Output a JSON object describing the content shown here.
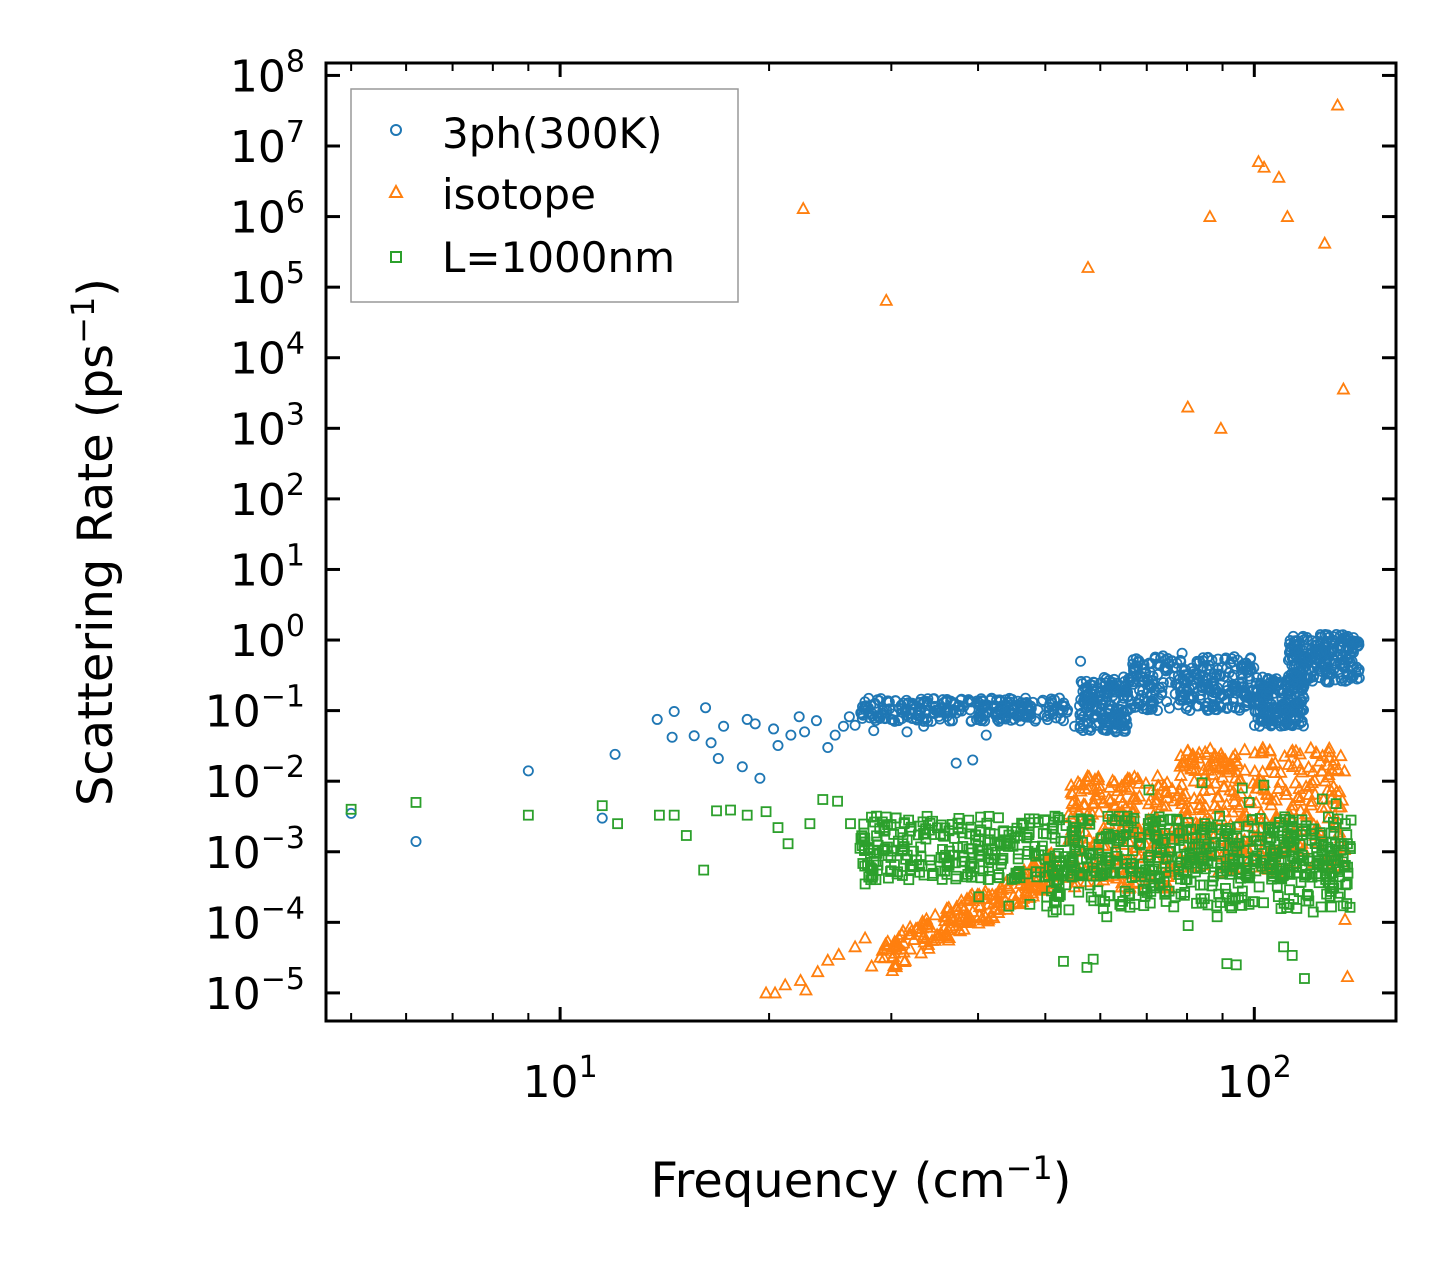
{
  "chart_data": {
    "type": "scatter",
    "title": "",
    "xlabel": "Frequency (cm",
    "xlabel_sup": "−1",
    "xlabel_end": ")",
    "ylabel": "Scattering Rate (ps",
    "ylabel_sup": "−1",
    "ylabel_end": ")",
    "xscale": "log",
    "yscale": "log",
    "xlim": [
      4.6,
      160
    ],
    "ylim": [
      4e-06,
      150000000.0
    ],
    "x_ticks": [
      {
        "value": 10,
        "base": "10",
        "exp": "1"
      },
      {
        "value": 100,
        "base": "10",
        "exp": "2"
      }
    ],
    "y_ticks": [
      {
        "value": 1e-05,
        "base": "10",
        "exp": "−5"
      },
      {
        "value": 0.0001,
        "base": "10",
        "exp": "−4"
      },
      {
        "value": 0.001,
        "base": "10",
        "exp": "−3"
      },
      {
        "value": 0.01,
        "base": "10",
        "exp": "−2"
      },
      {
        "value": 0.1,
        "base": "10",
        "exp": "−1"
      },
      {
        "value": 1,
        "base": "10",
        "exp": "0"
      },
      {
        "value": 10,
        "base": "10",
        "exp": "1"
      },
      {
        "value": 100,
        "base": "10",
        "exp": "2"
      },
      {
        "value": 1000,
        "base": "10",
        "exp": "3"
      },
      {
        "value": 10000,
        "base": "10",
        "exp": "4"
      },
      {
        "value": 100000,
        "base": "10",
        "exp": "5"
      },
      {
        "value": 1000000,
        "base": "10",
        "exp": "6"
      },
      {
        "value": 10000000,
        "base": "10",
        "exp": "7"
      },
      {
        "value": 100000000,
        "base": "10",
        "exp": "8"
      }
    ],
    "legend_position": "top-left",
    "series": [
      {
        "name": "3ph(300K)",
        "marker": "circle",
        "color": "#1f77b4",
        "points": [
          [
            5,
            0.0035
          ],
          [
            6.2,
            0.0014
          ],
          [
            9,
            0.014
          ],
          [
            11.5,
            0.003
          ],
          [
            12,
            0.024
          ],
          [
            13.8,
            0.075
          ],
          [
            14.5,
            0.042
          ],
          [
            14.6,
            0.097
          ],
          [
            15.6,
            0.044
          ],
          [
            16.2,
            0.11
          ],
          [
            16.5,
            0.035
          ],
          [
            16.9,
            0.021
          ],
          [
            17.2,
            0.06
          ],
          [
            18.3,
            0.016
          ],
          [
            18.6,
            0.075
          ],
          [
            19.1,
            0.065
          ],
          [
            19.4,
            0.011
          ],
          [
            20.3,
            0.055
          ],
          [
            20.6,
            0.032
          ],
          [
            21.5,
            0.045
          ],
          [
            22.1,
            0.082
          ],
          [
            22.5,
            0.05
          ],
          [
            23.4,
            0.072
          ],
          [
            24.3,
            0.03
          ],
          [
            24.9,
            0.045
          ],
          [
            25.6,
            0.06
          ],
          [
            26.1,
            0.082
          ],
          [
            26.6,
            0.062
          ],
          [
            27.2,
            0.091
          ],
          [
            27.8,
            0.11
          ],
          [
            28.3,
            0.052
          ],
          [
            29.1,
            0.092
          ],
          [
            30.2,
            0.074
          ],
          [
            31.6,
            0.05
          ],
          [
            33.4,
            0.06
          ],
          [
            35.3,
            0.11
          ],
          [
            37.2,
            0.018
          ],
          [
            39.3,
            0.02
          ],
          [
            41.1,
            0.045
          ],
          [
            43.4,
            0.11
          ],
          [
            46.2,
            0.13
          ],
          [
            49.6,
            0.14
          ],
          [
            52.4,
            0.15
          ],
          [
            55.1,
            0.06
          ],
          [
            56.2,
            0.5
          ],
          [
            57.3,
            0.26
          ],
          [
            58.1,
            0.12
          ],
          [
            61.2,
            0.16
          ],
          [
            63.7,
            0.075
          ],
          [
            67.2,
            0.36
          ],
          [
            70.8,
            0.35
          ],
          [
            73.6,
            0.18
          ],
          [
            76.2,
            0.5
          ],
          [
            78.7,
            0.65
          ],
          [
            81.3,
            0.4
          ],
          [
            85.6,
            0.28
          ],
          [
            89.4,
            0.31
          ],
          [
            94.2,
            0.22
          ],
          [
            98.3,
            0.16
          ],
          [
            102.5,
            0.11
          ],
          [
            106.3,
            0.075
          ],
          [
            110.6,
            0.1
          ],
          [
            114.8,
            0.32
          ],
          [
            119.5,
            0.28
          ],
          [
            124.6,
            0.42
          ],
          [
            129.8,
            0.7
          ],
          [
            135.2,
            1.1
          ],
          [
            141,
            0.95
          ]
        ],
        "clusters": [
          {
            "x0": 27,
            "x1": 54,
            "y0": 0.07,
            "y1": 0.15,
            "n": 260
          },
          {
            "x0": 56,
            "x1": 66,
            "y0": 0.05,
            "y1": 0.3,
            "n": 160
          },
          {
            "x0": 66,
            "x1": 100,
            "y0": 0.1,
            "y1": 0.6,
            "n": 280
          },
          {
            "x0": 100,
            "x1": 118,
            "y0": 0.06,
            "y1": 0.3,
            "n": 200
          },
          {
            "x0": 112,
            "x1": 142,
            "y0": 0.25,
            "y1": 1.2,
            "n": 220
          }
        ]
      },
      {
        "name": "isotope",
        "marker": "triangle",
        "color": "#ff7f0e",
        "points": [
          [
            19.8,
            1e-05
          ],
          [
            20.4,
            1e-05
          ],
          [
            21.1,
            1.3e-05
          ],
          [
            22.2,
            1.5e-05
          ],
          [
            22.6,
            1.1e-05
          ],
          [
            23.5,
            2e-05
          ],
          [
            24.3,
            2.9e-05
          ],
          [
            25.2,
            3.5e-05
          ],
          [
            26.6,
            4.5e-05
          ],
          [
            27.5,
            6e-05
          ],
          [
            28.1,
            2.4e-05
          ],
          [
            28.9,
            3.2e-05
          ],
          [
            30.2,
            4.5e-05
          ],
          [
            32.1,
            7.6e-05
          ],
          [
            22.4,
            1300000.0
          ],
          [
            29.5,
            65000.0
          ],
          [
            57.6,
            190000.0
          ],
          [
            80.2,
            2000.0
          ],
          [
            86.3,
            1000000.0
          ],
          [
            89.5,
            1000.0
          ],
          [
            101.4,
            6000000.0
          ],
          [
            103.3,
            5000000.0
          ],
          [
            108.5,
            3600000.0
          ],
          [
            111.6,
            1000000.0
          ],
          [
            126.3,
            420000.0
          ],
          [
            131.8,
            38000000.0
          ],
          [
            134.4,
            3600.0
          ],
          [
            135.1,
            0.00011
          ],
          [
            136.2,
            1.7e-05
          ]
        ],
        "clusters": [
          {
            "x0": 29,
            "x1": 52,
            "y0": 3e-05,
            "y1": 0.0006,
            "n": 220,
            "trend": true
          },
          {
            "x0": 54,
            "x1": 76,
            "y0": 0.0003,
            "y1": 0.012,
            "n": 220
          },
          {
            "x0": 76,
            "x1": 135,
            "y0": 0.0005,
            "y1": 0.03,
            "n": 360
          }
        ]
      },
      {
        "name": "L=1000nm",
        "marker": "square",
        "color": "#2ca02c",
        "points": [
          [
            5,
            0.004
          ],
          [
            6.2,
            0.005
          ],
          [
            9,
            0.0033
          ],
          [
            11.5,
            0.0045
          ],
          [
            12.1,
            0.0025
          ],
          [
            13.9,
            0.0033
          ],
          [
            14.6,
            0.0033
          ],
          [
            15.2,
            0.0017
          ],
          [
            16.1,
            0.00055
          ],
          [
            16.8,
            0.0038
          ],
          [
            17.6,
            0.0039
          ],
          [
            18.6,
            0.0033
          ],
          [
            19.8,
            0.0037
          ],
          [
            20.6,
            0.0022
          ],
          [
            21.3,
            0.0013
          ],
          [
            22.9,
            0.0025
          ],
          [
            23.9,
            0.0055
          ],
          [
            25.1,
            0.0052
          ],
          [
            26.2,
            0.0025
          ],
          [
            27.5,
            0.00035
          ],
          [
            29.4,
            0.0011
          ],
          [
            31.3,
            0.0025
          ],
          [
            33.1,
            0.00085
          ],
          [
            35.4,
            0.0024
          ],
          [
            37.2,
            0.00045
          ],
          [
            40.1,
            0.00023
          ],
          [
            44.3,
            0.00017
          ],
          [
            47.5,
            0.00018
          ],
          [
            51.3,
            0.00014
          ],
          [
            53.1,
            2.8e-05
          ],
          [
            57.4,
            2.3e-05
          ],
          [
            58.6,
            3e-05
          ],
          [
            61.3,
            0.00012
          ],
          [
            64.3,
            0.00017
          ],
          [
            67.2,
            0.00018
          ],
          [
            70.5,
            0.0075
          ],
          [
            74.3,
            0.00025
          ],
          [
            80.3,
            9e-05
          ],
          [
            84.1,
            0.0095
          ],
          [
            88.4,
            0.00012
          ],
          [
            91.3,
            2.6e-05
          ],
          [
            94.2,
            2.5e-05
          ],
          [
            96.1,
            0.008
          ],
          [
            98.3,
            0.005
          ],
          [
            103.2,
            0.0088
          ],
          [
            106.4,
            0.00045
          ],
          [
            110.2,
            4.5e-05
          ],
          [
            113.4,
            3.4e-05
          ],
          [
            118.1,
            1.6e-05
          ],
          [
            121.6,
            0.00014
          ],
          [
            125.3,
            0.0056
          ],
          [
            128.5,
            0.00036
          ],
          [
            131.2,
            0.0048
          ],
          [
            134.3,
            0.0008
          ],
          [
            136.1,
            0.00035
          ]
        ],
        "clusters": [
          {
            "x0": 27,
            "x1": 138,
            "y0": 0.0004,
            "y1": 0.0032,
            "n": 620
          },
          {
            "x0": 50,
            "x1": 138,
            "y0": 0.00015,
            "y1": 0.0009,
            "n": 200
          }
        ]
      }
    ]
  }
}
